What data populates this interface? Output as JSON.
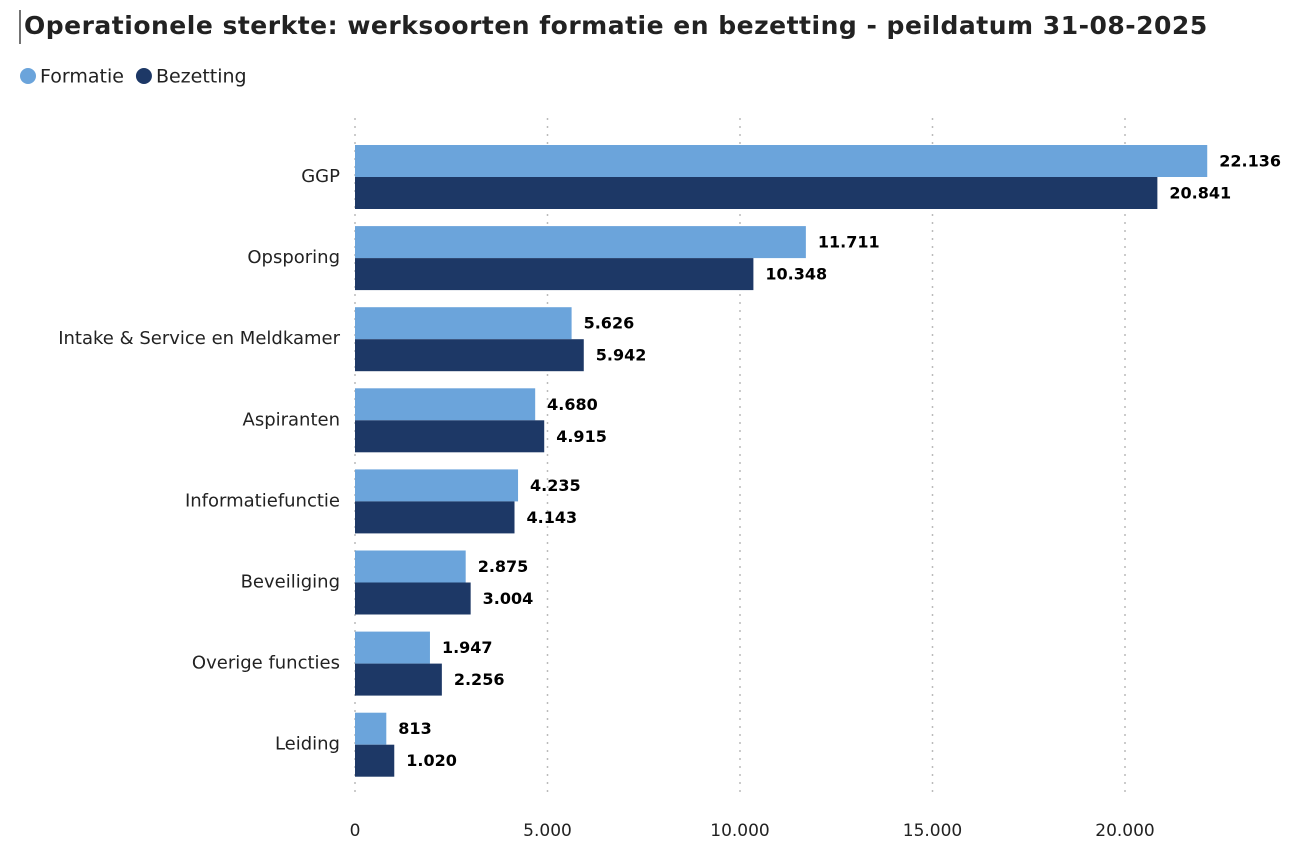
{
  "chart_data": {
    "type": "hbar",
    "title": "Operationele sterkte: werksoorten formatie en bezetting - peildatum 31-08-2025",
    "categories": [
      "GGP",
      "Opsporing",
      "Intake & Service en Meldkamer",
      "Aspiranten",
      "Informatiefunctie",
      "Beveiliging",
      "Overige functies",
      "Leiding"
    ],
    "series": [
      {
        "name": "Formatie",
        "color": "#6ba4db",
        "values": [
          22136,
          11711,
          5626,
          4680,
          4235,
          2875,
          1947,
          813
        ],
        "value_labels": [
          "22.136",
          "11.711",
          "5.626",
          "4.680",
          "4.235",
          "2.875",
          "1.947",
          "813"
        ]
      },
      {
        "name": "Bezetting",
        "color": "#1d3866",
        "values": [
          20841,
          10348,
          5942,
          4915,
          4143,
          3004,
          2256,
          1020
        ],
        "value_labels": [
          "20.841",
          "10.348",
          "5.942",
          "4.915",
          "4.143",
          "3.004",
          "2.256",
          "1.020"
        ]
      }
    ],
    "xlim": [
      0,
      23000
    ],
    "xticks": [
      0,
      {
        "value": 5000,
        "label": "5.000"
      },
      {
        "value": 10000,
        "label": "10.000"
      },
      {
        "value": 15000,
        "label": "15.000"
      },
      {
        "value": 20000,
        "label": "20.000"
      }
    ],
    "grid": true,
    "legend": "top-left"
  }
}
